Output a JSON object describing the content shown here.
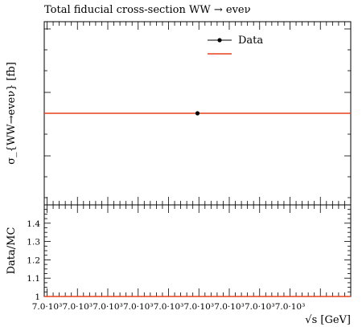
{
  "chart_data": [
    {
      "type": "line",
      "title": "Total fiducial cross-section WW → eveν",
      "ylabel": "σ_{WW→eveν} [fb]",
      "xlabel": "",
      "legend": {
        "placement": "top-right",
        "entries": [
          "Data",
          ""
        ]
      },
      "series": [
        {
          "name": "Data",
          "kind": "point",
          "x": [
            7000
          ],
          "y": [
            1
          ]
        },
        {
          "name": "",
          "kind": "line",
          "x": [
            6995,
            7005
          ],
          "y": [
            1,
            1
          ],
          "color": "#e8411c"
        }
      ],
      "xlim": [
        6995,
        7005
      ],
      "ylim": [
        0.5,
        1.5
      ]
    },
    {
      "type": "line",
      "ylabel": "Data/MC",
      "xlabel": "√s [GeV]",
      "x_tick_labels": [
        "7.0·10³",
        "7.0·10³",
        "7.0·10³",
        "7.0·10³",
        "7.0·10³",
        "7.0·10³",
        "7.0·10³",
        "7.0·10³",
        "7.0·10³"
      ],
      "y_ticks": [
        1,
        1.1,
        1.2,
        1.3,
        1.4
      ],
      "y_tick_labels": [
        "1",
        "1.1",
        "1.2",
        "1.3",
        "1.4"
      ],
      "series": [
        {
          "name": "",
          "kind": "line",
          "x": [
            6995,
            7005
          ],
          "y": [
            1,
            1
          ],
          "color": "#e8411c"
        }
      ],
      "xlim": [
        6995,
        7005
      ],
      "ylim": [
        1,
        1.5
      ]
    }
  ],
  "colors": {
    "mc_line": "#e8411c",
    "data_marker": "#000000"
  }
}
